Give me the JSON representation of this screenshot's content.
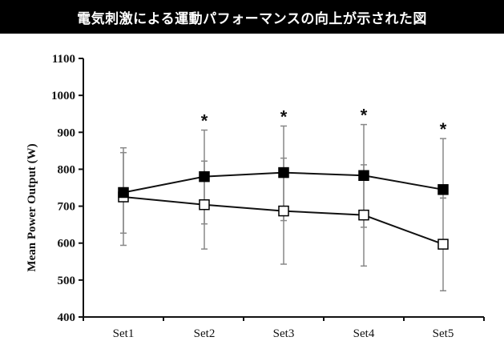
{
  "header": {
    "title": "電気刺激による運動パフォーマンスの向上が示された図"
  },
  "chart_data": {
    "type": "line",
    "title": "電気刺激による運動パフォーマンスの向上が示された図",
    "xlabel": "",
    "ylabel": "Mean Power Output (W)",
    "ylim": [
      400,
      1100
    ],
    "yticks": [
      400,
      500,
      600,
      700,
      800,
      900,
      1000,
      1100
    ],
    "categories": [
      "Set1",
      "Set2",
      "Set3",
      "Set4",
      "Set5"
    ],
    "grid": false,
    "legend": null,
    "series": [
      {
        "name": "filled-square",
        "marker": "filled-square",
        "values": [
          737,
          780,
          791,
          783,
          745
        ],
        "error_upper": [
          858,
          906,
          917,
          921,
          883
        ],
        "error_lower": [
          627,
          652,
          661,
          643,
          722
        ]
      },
      {
        "name": "open-square",
        "marker": "open-square",
        "values": [
          725,
          704,
          687,
          676,
          597
        ],
        "error_upper": [
          845,
          822,
          830,
          812,
          722
        ],
        "error_lower": [
          594,
          584,
          543,
          538,
          471
        ]
      }
    ],
    "annotations": [
      {
        "category": "Set2",
        "text": "*"
      },
      {
        "category": "Set3",
        "text": "*"
      },
      {
        "category": "Set4",
        "text": "*"
      },
      {
        "category": "Set5",
        "text": "*"
      }
    ]
  }
}
